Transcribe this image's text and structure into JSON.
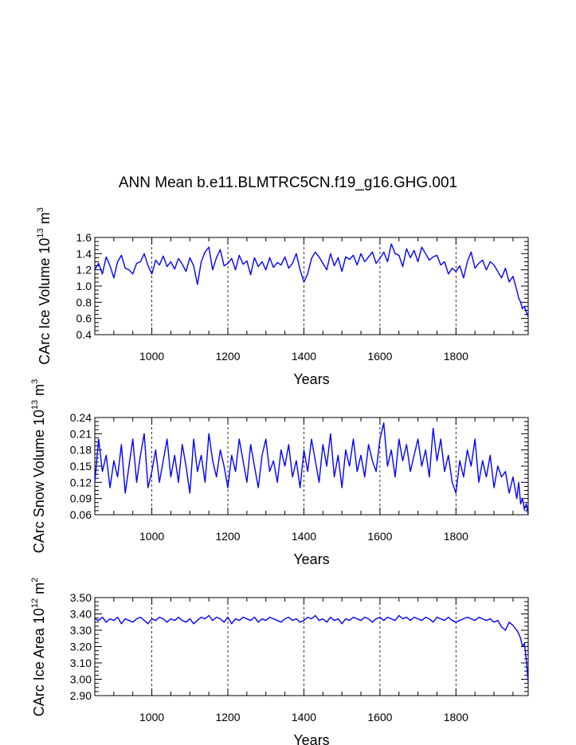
{
  "figure": {
    "title": "ANN Mean b.e11.BLMTRC5CN.f19_g16.GHG.001"
  },
  "colors": {
    "series": "#0000ff",
    "axis": "#000000",
    "grid": "#000000"
  },
  "chart_data": [
    {
      "type": "line",
      "title": "",
      "xlabel": "Years",
      "ylabel_main": "CArc Ice Volume 10",
      "ylabel_exp": "13",
      "ylabel_unit": "m",
      "ylabel_unit_exp": "3",
      "xlim": [
        850,
        1990
      ],
      "ylim": [
        0.4,
        1.6
      ],
      "xticks": [
        1000,
        1200,
        1400,
        1600,
        1800
      ],
      "yticks": [
        0.4,
        0.6,
        0.8,
        1.0,
        1.2,
        1.4,
        1.6
      ],
      "ytick_labels": [
        "0.4",
        "0.6",
        "0.8",
        "1.0",
        "1.2",
        "1.4",
        "1.6"
      ],
      "grid": "x-dashed",
      "series": [
        {
          "x": [
            850,
            860,
            870,
            880,
            890,
            900,
            910,
            920,
            930,
            940,
            950,
            960,
            970,
            980,
            990,
            1000,
            1010,
            1020,
            1030,
            1040,
            1050,
            1060,
            1070,
            1080,
            1090,
            1100,
            1110,
            1120,
            1130,
            1140,
            1150,
            1160,
            1170,
            1180,
            1190,
            1200,
            1210,
            1220,
            1230,
            1240,
            1250,
            1260,
            1270,
            1280,
            1290,
            1300,
            1310,
            1320,
            1330,
            1340,
            1350,
            1360,
            1370,
            1380,
            1390,
            1400,
            1410,
            1420,
            1430,
            1440,
            1450,
            1460,
            1470,
            1480,
            1490,
            1500,
            1510,
            1520,
            1530,
            1540,
            1550,
            1560,
            1570,
            1580,
            1590,
            1600,
            1610,
            1620,
            1630,
            1640,
            1650,
            1660,
            1670,
            1680,
            1690,
            1700,
            1710,
            1720,
            1730,
            1740,
            1750,
            1760,
            1770,
            1780,
            1790,
            1800,
            1810,
            1820,
            1830,
            1840,
            1850,
            1860,
            1870,
            1880,
            1890,
            1900,
            1910,
            1920,
            1930,
            1940,
            1950,
            1960,
            1965,
            1970,
            1975,
            1980,
            1985,
            1990
          ],
          "y": [
            1.2,
            1.28,
            1.15,
            1.36,
            1.25,
            1.1,
            1.3,
            1.38,
            1.22,
            1.2,
            1.15,
            1.28,
            1.3,
            1.4,
            1.25,
            1.15,
            1.32,
            1.26,
            1.37,
            1.24,
            1.3,
            1.21,
            1.34,
            1.27,
            1.18,
            1.35,
            1.25,
            1.02,
            1.3,
            1.42,
            1.48,
            1.2,
            1.35,
            1.45,
            1.25,
            1.28,
            1.34,
            1.2,
            1.38,
            1.27,
            1.31,
            1.14,
            1.35,
            1.24,
            1.3,
            1.2,
            1.35,
            1.23,
            1.29,
            1.26,
            1.36,
            1.22,
            1.28,
            1.4,
            1.2,
            1.05,
            1.15,
            1.34,
            1.42,
            1.36,
            1.28,
            1.2,
            1.4,
            1.25,
            1.35,
            1.18,
            1.36,
            1.33,
            1.38,
            1.26,
            1.4,
            1.3,
            1.36,
            1.42,
            1.28,
            1.34,
            1.42,
            1.3,
            1.52,
            1.4,
            1.38,
            1.24,
            1.46,
            1.35,
            1.44,
            1.3,
            1.48,
            1.4,
            1.32,
            1.36,
            1.38,
            1.26,
            1.3,
            1.15,
            1.22,
            1.18,
            1.25,
            1.1,
            1.3,
            1.42,
            1.22,
            1.28,
            1.32,
            1.2,
            1.3,
            1.26,
            1.18,
            1.1,
            1.22,
            1.05,
            1.12,
            0.95,
            0.85,
            0.8,
            0.72,
            0.75,
            0.68,
            0.62
          ]
        }
      ]
    },
    {
      "type": "line",
      "title": "",
      "xlabel": "Years",
      "ylabel_main": "CArc Snow Volume 10",
      "ylabel_exp": "13",
      "ylabel_unit": "m",
      "ylabel_unit_exp": "3",
      "xlim": [
        850,
        1990
      ],
      "ylim": [
        0.06,
        0.24
      ],
      "xticks": [
        1000,
        1200,
        1400,
        1600,
        1800
      ],
      "yticks": [
        0.06,
        0.09,
        0.12,
        0.15,
        0.18,
        0.21,
        0.24
      ],
      "ytick_labels": [
        "0.06",
        "0.09",
        "0.12",
        "0.15",
        "0.18",
        "0.21",
        "0.24"
      ],
      "grid": "x-dashed",
      "series": [
        {
          "x": [
            850,
            860,
            870,
            880,
            890,
            900,
            910,
            920,
            930,
            940,
            950,
            960,
            970,
            980,
            990,
            1000,
            1010,
            1020,
            1030,
            1040,
            1050,
            1060,
            1070,
            1080,
            1090,
            1100,
            1110,
            1120,
            1130,
            1140,
            1150,
            1160,
            1170,
            1180,
            1190,
            1200,
            1210,
            1220,
            1230,
            1240,
            1250,
            1260,
            1270,
            1280,
            1290,
            1300,
            1310,
            1320,
            1330,
            1340,
            1350,
            1360,
            1370,
            1380,
            1390,
            1400,
            1410,
            1420,
            1430,
            1440,
            1450,
            1460,
            1470,
            1480,
            1490,
            1500,
            1510,
            1520,
            1530,
            1540,
            1550,
            1560,
            1570,
            1580,
            1590,
            1600,
            1610,
            1620,
            1630,
            1640,
            1650,
            1660,
            1670,
            1680,
            1690,
            1700,
            1710,
            1720,
            1730,
            1740,
            1750,
            1760,
            1770,
            1780,
            1790,
            1800,
            1810,
            1820,
            1830,
            1840,
            1850,
            1860,
            1870,
            1880,
            1890,
            1900,
            1910,
            1920,
            1930,
            1940,
            1950,
            1960,
            1965,
            1970,
            1975,
            1980,
            1985,
            1990
          ],
          "y": [
            0.12,
            0.2,
            0.14,
            0.17,
            0.11,
            0.16,
            0.13,
            0.19,
            0.1,
            0.15,
            0.2,
            0.12,
            0.17,
            0.21,
            0.11,
            0.14,
            0.18,
            0.12,
            0.16,
            0.2,
            0.13,
            0.17,
            0.12,
            0.19,
            0.15,
            0.1,
            0.2,
            0.14,
            0.17,
            0.12,
            0.21,
            0.16,
            0.13,
            0.18,
            0.15,
            0.11,
            0.17,
            0.14,
            0.2,
            0.16,
            0.12,
            0.19,
            0.15,
            0.11,
            0.17,
            0.2,
            0.14,
            0.16,
            0.12,
            0.18,
            0.15,
            0.19,
            0.13,
            0.16,
            0.11,
            0.18,
            0.14,
            0.2,
            0.16,
            0.12,
            0.19,
            0.15,
            0.21,
            0.13,
            0.17,
            0.11,
            0.18,
            0.15,
            0.2,
            0.14,
            0.17,
            0.13,
            0.19,
            0.16,
            0.14,
            0.2,
            0.23,
            0.15,
            0.18,
            0.13,
            0.2,
            0.16,
            0.19,
            0.14,
            0.17,
            0.2,
            0.15,
            0.18,
            0.13,
            0.22,
            0.16,
            0.2,
            0.14,
            0.17,
            0.12,
            0.1,
            0.16,
            0.13,
            0.18,
            0.15,
            0.2,
            0.12,
            0.16,
            0.13,
            0.17,
            0.11,
            0.15,
            0.13,
            0.14,
            0.1,
            0.13,
            0.09,
            0.12,
            0.08,
            0.09,
            0.07,
            0.08,
            0.06
          ]
        }
      ]
    },
    {
      "type": "line",
      "title": "",
      "xlabel": "Years",
      "ylabel_main": "CArc Ice Area 10",
      "ylabel_exp": "12",
      "ylabel_unit": "m",
      "ylabel_unit_exp": "2",
      "xlim": [
        850,
        1990
      ],
      "ylim": [
        2.9,
        3.5
      ],
      "xticks": [
        1000,
        1200,
        1400,
        1600,
        1800
      ],
      "yticks": [
        2.9,
        3.0,
        3.1,
        3.2,
        3.3,
        3.4,
        3.5
      ],
      "ytick_labels": [
        "2.90",
        "3.00",
        "3.10",
        "3.20",
        "3.30",
        "3.40",
        "3.50"
      ],
      "grid": "x-dashed",
      "series": [
        {
          "x": [
            850,
            860,
            870,
            880,
            890,
            900,
            910,
            920,
            930,
            940,
            950,
            960,
            970,
            980,
            990,
            1000,
            1010,
            1020,
            1030,
            1040,
            1050,
            1060,
            1070,
            1080,
            1090,
            1100,
            1110,
            1120,
            1130,
            1140,
            1150,
            1160,
            1170,
            1180,
            1190,
            1200,
            1210,
            1220,
            1230,
            1240,
            1250,
            1260,
            1270,
            1280,
            1290,
            1300,
            1310,
            1320,
            1330,
            1340,
            1350,
            1360,
            1370,
            1380,
            1390,
            1400,
            1410,
            1420,
            1430,
            1440,
            1450,
            1460,
            1470,
            1480,
            1490,
            1500,
            1510,
            1520,
            1530,
            1540,
            1550,
            1560,
            1570,
            1580,
            1590,
            1600,
            1610,
            1620,
            1630,
            1640,
            1650,
            1660,
            1670,
            1680,
            1690,
            1700,
            1710,
            1720,
            1730,
            1740,
            1750,
            1760,
            1770,
            1780,
            1790,
            1800,
            1810,
            1820,
            1830,
            1840,
            1850,
            1860,
            1870,
            1880,
            1890,
            1900,
            1910,
            1920,
            1930,
            1940,
            1950,
            1960,
            1965,
            1970,
            1975,
            1980,
            1985,
            1990
          ],
          "y": [
            3.37,
            3.36,
            3.38,
            3.35,
            3.37,
            3.36,
            3.38,
            3.34,
            3.37,
            3.36,
            3.35,
            3.37,
            3.38,
            3.36,
            3.34,
            3.37,
            3.36,
            3.38,
            3.37,
            3.35,
            3.37,
            3.36,
            3.38,
            3.36,
            3.35,
            3.37,
            3.34,
            3.36,
            3.38,
            3.37,
            3.39,
            3.36,
            3.38,
            3.37,
            3.35,
            3.38,
            3.34,
            3.37,
            3.36,
            3.38,
            3.37,
            3.36,
            3.38,
            3.35,
            3.37,
            3.36,
            3.38,
            3.37,
            3.36,
            3.35,
            3.37,
            3.38,
            3.36,
            3.37,
            3.35,
            3.36,
            3.38,
            3.37,
            3.39,
            3.36,
            3.37,
            3.35,
            3.38,
            3.36,
            3.37,
            3.34,
            3.37,
            3.36,
            3.38,
            3.37,
            3.36,
            3.38,
            3.37,
            3.35,
            3.37,
            3.38,
            3.36,
            3.38,
            3.37,
            3.36,
            3.39,
            3.37,
            3.38,
            3.36,
            3.38,
            3.37,
            3.36,
            3.38,
            3.37,
            3.35,
            3.38,
            3.37,
            3.36,
            3.38,
            3.36,
            3.35,
            3.36,
            3.37,
            3.38,
            3.37,
            3.36,
            3.38,
            3.37,
            3.36,
            3.37,
            3.35,
            3.36,
            3.32,
            3.3,
            3.35,
            3.33,
            3.3,
            3.28,
            3.25,
            3.2,
            3.22,
            3.12,
            2.98
          ]
        }
      ]
    }
  ]
}
